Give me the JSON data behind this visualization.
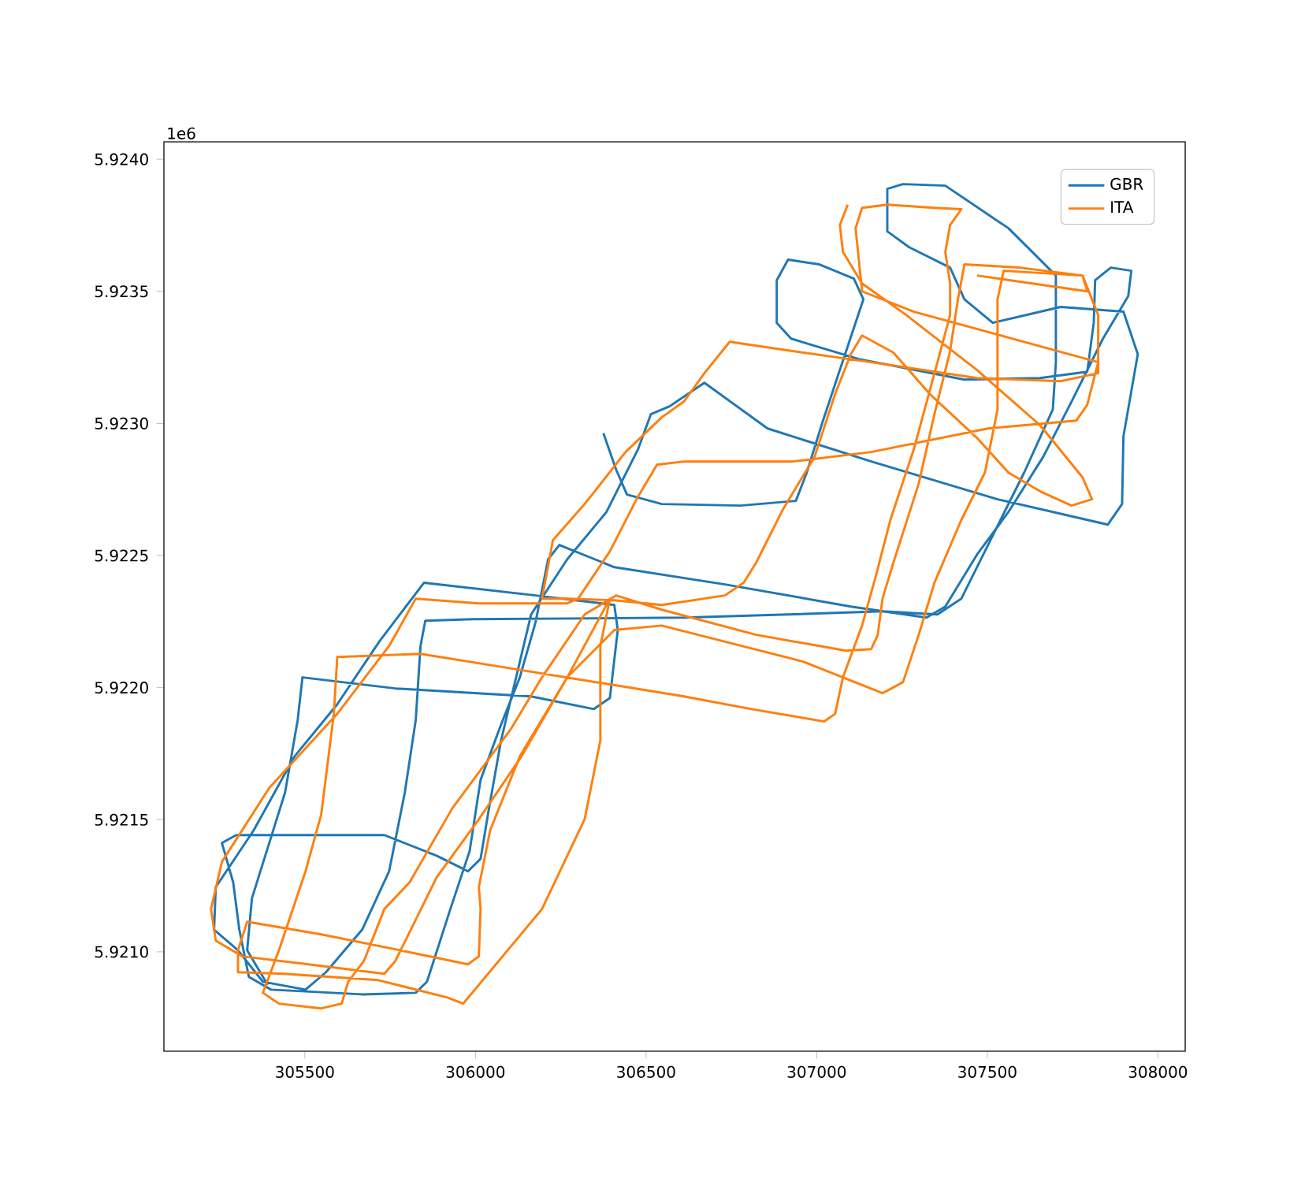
{
  "chart_data": {
    "type": "line",
    "xlim": [
      305087,
      308080
    ],
    "ylim": [
      5.920624,
      5.924066
    ],
    "xticks": [
      305500,
      306000,
      306500,
      307000,
      307500,
      308000
    ],
    "yticks": [
      {
        "value": 5.921,
        "label": "5.9210"
      },
      {
        "value": 5.9215,
        "label": "5.9215"
      },
      {
        "value": 5.922,
        "label": "5.9220"
      },
      {
        "value": 5.9225,
        "label": "5.9225"
      },
      {
        "value": 5.923,
        "label": "5.9230"
      },
      {
        "value": 5.9235,
        "label": "5.9235"
      },
      {
        "value": 5.924,
        "label": "5.9240"
      }
    ],
    "annotations": [
      "1e6"
    ],
    "legend": "top right",
    "series": [
      {
        "name": "GBR",
        "color": "#1f77b4",
        "x": [
          306375,
          306412,
          306444,
          306546,
          306777,
          306939,
          306971,
          307017,
          307063,
          307137,
          307109,
          307008,
          306916,
          306883,
          306883,
          306925,
          307123,
          307433,
          307655,
          307793,
          307812,
          307816,
          307862,
          307922,
          307913,
          307839,
          307747,
          307664,
          307562,
          307470,
          307377,
          307322,
          307100,
          306731,
          306407,
          306246,
          306213,
          306176,
          306130,
          306075,
          306015,
          305983,
          305922,
          305858,
          305825,
          305668,
          305401,
          305336,
          305308,
          305290,
          305257,
          305299,
          305733,
          305886,
          305978,
          306015,
          306038,
          306075,
          306130,
          306163,
          306269,
          306384,
          306477,
          306514,
          306569,
          306671,
          306856,
          307160,
          307530,
          307853,
          307895,
          307899,
          307941,
          307899,
          307715,
          307516,
          307433,
          307391,
          307271,
          307207,
          307207,
          307253,
          307377,
          307562,
          307701,
          307701,
          307692,
          307608,
          307516,
          307424,
          307354,
          307193,
          306916,
          306611,
          305992,
          305853,
          305839,
          305825,
          305793,
          305747,
          305668,
          305562,
          305502,
          305377,
          305304,
          305234,
          305239,
          305350,
          305470,
          305595,
          305719,
          305849,
          306176,
          306407,
          306417,
          306394,
          306347,
          306163,
          305765,
          305493,
          305479,
          305442,
          305345,
          305331,
          305391
        ],
        "values": [
          5.922963,
          5.922826,
          5.922731,
          5.922695,
          5.922689,
          5.922707,
          5.922814,
          5.923005,
          5.923184,
          5.92347,
          5.923548,
          5.923602,
          5.92362,
          5.923542,
          5.923381,
          5.923321,
          5.923244,
          5.923166,
          5.923172,
          5.923196,
          5.923381,
          5.923542,
          5.92359,
          5.923578,
          5.923482,
          5.923321,
          5.923083,
          5.922874,
          5.922665,
          5.922504,
          5.922307,
          5.922265,
          5.922307,
          5.922391,
          5.922456,
          5.92254,
          5.922486,
          5.922247,
          5.922039,
          5.92186,
          5.921651,
          5.921382,
          5.921144,
          5.920887,
          5.920845,
          5.920839,
          5.920857,
          5.920905,
          5.921084,
          5.921263,
          5.921412,
          5.921442,
          5.921442,
          5.921364,
          5.921305,
          5.921352,
          5.921531,
          5.9218,
          5.922098,
          5.922277,
          5.922486,
          5.922665,
          5.922904,
          5.923035,
          5.923065,
          5.923154,
          5.922981,
          5.922856,
          5.922713,
          5.922617,
          5.922695,
          5.922951,
          5.923262,
          5.923423,
          5.923441,
          5.923381,
          5.92347,
          5.92359,
          5.923667,
          5.923727,
          5.923888,
          5.923906,
          5.9239,
          5.923739,
          5.92356,
          5.923232,
          5.923053,
          5.922814,
          5.922576,
          5.922337,
          5.922277,
          5.922289,
          5.922277,
          5.922265,
          5.922259,
          5.922253,
          5.922158,
          5.921877,
          5.921603,
          5.921305,
          5.921084,
          5.920923,
          5.920857,
          5.920887,
          5.921006,
          5.921084,
          5.921245,
          5.92146,
          5.92174,
          5.921937,
          5.922176,
          5.922397,
          5.922349,
          5.922313,
          5.922218,
          5.921961,
          5.921919,
          5.921967,
          5.921997,
          5.922039,
          5.921877,
          5.921603,
          5.921203,
          5.921006,
          5.920875
        ]
      },
      {
        "name": "ITA",
        "color": "#ff7f0e",
        "x": [
          307091,
          307068,
          307077,
          307133,
          307262,
          307470,
          307655,
          307779,
          307807,
          307747,
          307655,
          307562,
          307470,
          307331,
          307225,
          307133,
          307100,
          307054,
          306994,
          306902,
          306823,
          306786,
          306731,
          306546,
          306407,
          306269,
          306195,
          306227,
          306320,
          306440,
          306546,
          306611,
          306671,
          306745,
          306929,
          307160,
          307470,
          307715,
          307825,
          307825,
          307779,
          307595,
          307433,
          307414,
          307391,
          307345,
          307299,
          307225,
          307193,
          307179,
          307160,
          307086,
          306823,
          306546,
          306412,
          306320,
          306195,
          306103,
          305932,
          305807,
          305733,
          305673,
          305627,
          305608,
          305548,
          305424,
          305377,
          305424,
          305502,
          305548,
          305585,
          305595,
          305839,
          306070,
          306611,
          306809,
          307022,
          307054,
          307077,
          307133,
          307174,
          307216,
          307285,
          307354,
          307391,
          307391,
          307377,
          307391,
          307424,
          307345,
          307207,
          307133,
          307114,
          307133,
          307285,
          307825,
          307793,
          307761,
          307502,
          307160,
          306929,
          306611,
          306532,
          306472,
          306394,
          306301,
          306269,
          306010,
          305825,
          305747,
          305595,
          305396,
          305257,
          305225,
          305239,
          305317,
          305548,
          305733,
          305765,
          305886,
          306010,
          306135,
          306269,
          306394,
          306366,
          306366,
          306320,
          306195,
          305964,
          305918,
          305715,
          305437,
          305304,
          305304,
          305331,
          305548,
          305779,
          305978,
          306010,
          306015,
          306010,
          306043,
          306130,
          306269,
          306407,
          306546,
          306962,
          307193,
          307253,
          307299,
          307345,
          307424,
          307493,
          307530,
          307530,
          307548,
          307779,
          307793,
          307470
        ],
        "values": [
          5.923828,
          5.923751,
          5.923649,
          5.92353,
          5.923411,
          5.923202,
          5.922993,
          5.922796,
          5.922713,
          5.922689,
          5.922743,
          5.922814,
          5.922945,
          5.923112,
          5.923268,
          5.923333,
          5.923262,
          5.923112,
          5.922874,
          5.922677,
          5.922474,
          5.922397,
          5.922349,
          5.922313,
          5.922331,
          5.922337,
          5.922337,
          5.922558,
          5.922695,
          5.922892,
          5.923023,
          5.923083,
          5.92319,
          5.923309,
          5.923274,
          5.923232,
          5.923172,
          5.92316,
          5.92319,
          5.923411,
          5.92356,
          5.92359,
          5.923602,
          5.92347,
          5.923274,
          5.923035,
          5.922772,
          5.922474,
          5.922337,
          5.9222,
          5.922146,
          5.92214,
          5.9222,
          5.922295,
          5.922349,
          5.922277,
          5.922039,
          5.921842,
          5.921543,
          5.921263,
          5.921162,
          5.920965,
          5.920887,
          5.920804,
          5.920786,
          5.920804,
          5.920845,
          5.921006,
          5.921305,
          5.92152,
          5.921901,
          5.922116,
          5.922128,
          5.92208,
          5.921967,
          5.921919,
          5.921872,
          5.921901,
          5.922039,
          5.922235,
          5.922426,
          5.922635,
          5.922904,
          5.923232,
          5.923411,
          5.92353,
          5.923649,
          5.923751,
          5.923811,
          5.923816,
          5.923828,
          5.923816,
          5.923739,
          5.9235,
          5.923423,
          5.923232,
          5.923071,
          5.923011,
          5.922981,
          5.922892,
          5.922856,
          5.922856,
          5.922844,
          5.922713,
          5.922516,
          5.922337,
          5.922319,
          5.922319,
          5.922337,
          5.922158,
          5.921901,
          5.921621,
          5.921341,
          5.921162,
          5.921042,
          5.920983,
          5.920947,
          5.920917,
          5.920965,
          5.921281,
          5.921502,
          5.92174,
          5.922039,
          5.922337,
          5.922158,
          5.9218,
          5.921502,
          5.921162,
          5.920804,
          5.920827,
          5.920893,
          5.920917,
          5.920923,
          5.921006,
          5.921114,
          5.921066,
          5.921006,
          5.920953,
          5.920983,
          5.921162,
          5.921245,
          5.92146,
          5.92174,
          5.922039,
          5.922218,
          5.922235,
          5.922098,
          5.921979,
          5.922021,
          5.9222,
          5.922397,
          5.922635,
          5.922814,
          5.923053,
          5.92347,
          5.923578,
          5.92356,
          5.9235,
          5.92356
        ]
      }
    ]
  }
}
